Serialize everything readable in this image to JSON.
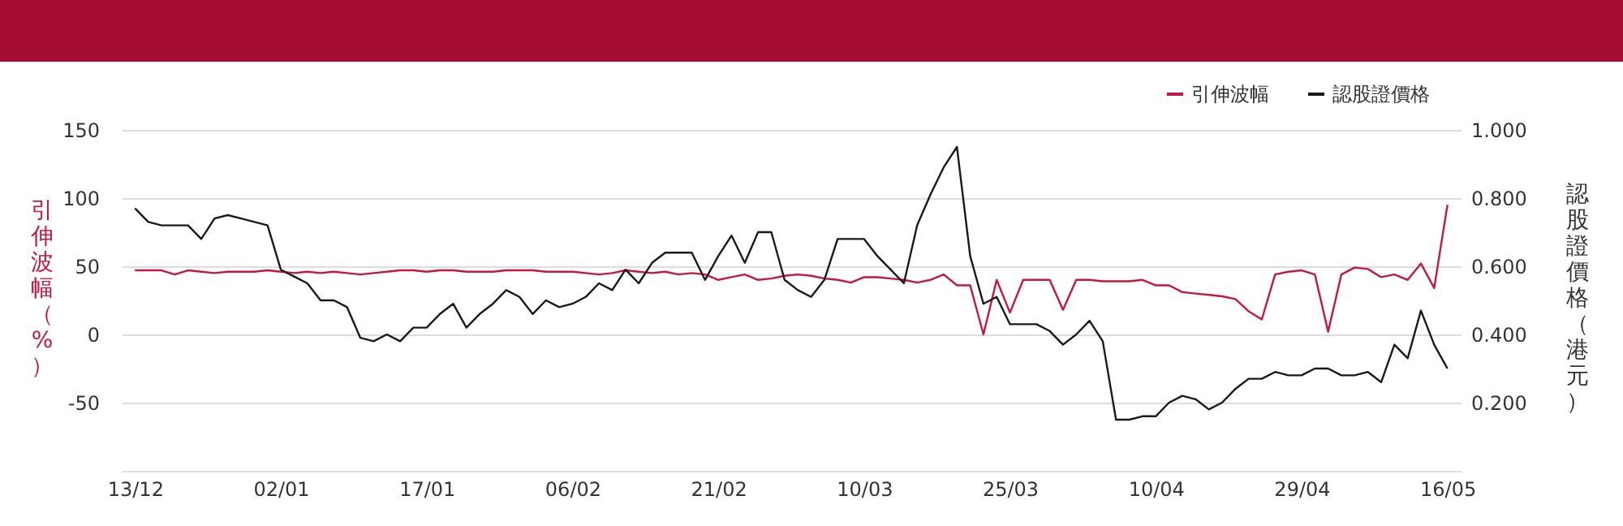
{
  "chart_data": {
    "type": "line",
    "categories": [
      "13/12",
      null,
      null,
      null,
      null,
      null,
      null,
      null,
      null,
      null,
      null,
      "02/01",
      null,
      null,
      null,
      null,
      null,
      null,
      null,
      null,
      null,
      null,
      "17/01",
      null,
      null,
      null,
      null,
      null,
      null,
      null,
      null,
      null,
      null,
      "06/02",
      null,
      null,
      null,
      null,
      null,
      null,
      null,
      null,
      null,
      null,
      "21/02",
      null,
      null,
      null,
      null,
      null,
      null,
      null,
      null,
      null,
      null,
      "10/03",
      null,
      null,
      null,
      null,
      null,
      null,
      null,
      null,
      null,
      null,
      "25/03",
      null,
      null,
      null,
      null,
      null,
      null,
      null,
      null,
      null,
      null,
      "10/04",
      null,
      null,
      null,
      null,
      null,
      null,
      null,
      null,
      null,
      null,
      "29/04",
      null,
      null,
      null,
      null,
      null,
      null,
      null,
      null,
      null,
      null,
      "16/05"
    ],
    "series": [
      {
        "name": "引伸波幅",
        "color": "#c8173f",
        "values": [
          47,
          47,
          47,
          44,
          47,
          46,
          45,
          46,
          46,
          46,
          47,
          46,
          45,
          46,
          45,
          46,
          45,
          44,
          45,
          46,
          47,
          47,
          46,
          47,
          47,
          46,
          46,
          46,
          47,
          47,
          47,
          46,
          46,
          46,
          45,
          44,
          45,
          47,
          46,
          45,
          46,
          44,
          45,
          44,
          40,
          42,
          44,
          40,
          41,
          43,
          44,
          43,
          41,
          40,
          38,
          42,
          42,
          41,
          40,
          38,
          40,
          44,
          36,
          36,
          0,
          40,
          16,
          40,
          40,
          40,
          18,
          40,
          40,
          39,
          39,
          39,
          40,
          36,
          36,
          31,
          30,
          29,
          28,
          26,
          17,
          11,
          44,
          46,
          47,
          44,
          2,
          44,
          49,
          48,
          42,
          44,
          40,
          52,
          34,
          95
        ]
      },
      {
        "name": "認股證價格",
        "color": "#1a1a1a",
        "axis": "y2",
        "values": [
          0.77,
          0.73,
          0.72,
          0.72,
          0.72,
          0.68,
          0.74,
          0.75,
          0.74,
          0.73,
          0.72,
          0.59,
          0.57,
          0.55,
          0.5,
          0.5,
          0.48,
          0.39,
          0.38,
          0.4,
          0.38,
          0.42,
          0.42,
          0.46,
          0.49,
          0.42,
          0.46,
          0.49,
          0.53,
          0.51,
          0.46,
          0.5,
          0.48,
          0.49,
          0.51,
          0.55,
          0.53,
          0.59,
          0.55,
          0.61,
          0.64,
          0.64,
          0.64,
          0.56,
          0.63,
          0.69,
          0.61,
          0.7,
          0.7,
          0.56,
          0.53,
          0.51,
          0.56,
          0.68,
          0.68,
          0.68,
          0.63,
          0.59,
          0.55,
          0.72,
          0.81,
          0.89,
          0.95,
          0.63,
          0.49,
          0.51,
          0.43,
          0.43,
          0.43,
          0.41,
          0.37,
          0.4,
          0.44,
          0.38,
          0.15,
          0.15,
          0.16,
          0.16,
          0.2,
          0.22,
          0.21,
          0.18,
          0.2,
          0.24,
          0.27,
          0.27,
          0.29,
          0.28,
          0.28,
          0.3,
          0.3,
          0.28,
          0.28,
          0.29,
          0.26,
          0.37,
          0.33,
          0.47,
          0.37,
          0.3
        ]
      }
    ],
    "ylabel": "引伸波幅（%）",
    "y2label": "認股證價格（港元）",
    "ylim": [
      -100,
      150
    ],
    "yticks": [
      {
        "value": -100,
        "label": null
      },
      -50,
      0,
      50,
      100,
      150
    ],
    "y2lim": [
      0,
      1
    ],
    "y2ticks": [
      {
        "value": 0,
        "label": null
      },
      {
        "value": 0.2,
        "label": "0.200"
      },
      {
        "value": 0.4,
        "label": "0.400"
      },
      {
        "value": 0.6,
        "label": "0.600"
      },
      {
        "value": 0.8,
        "label": "0.800"
      },
      {
        "value": 1,
        "label": "1.000"
      }
    ],
    "grid": "y",
    "legend": "top right"
  }
}
